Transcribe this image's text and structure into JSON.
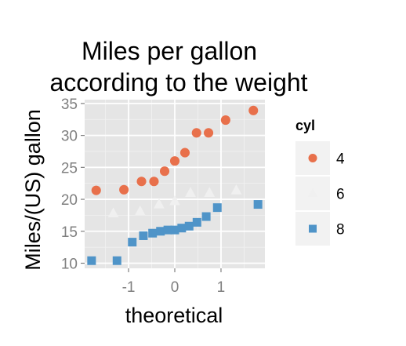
{
  "chart_data": {
    "type": "scatter",
    "title_lines": [
      "Miles per gallon",
      "according to the weight"
    ],
    "xlabel": "theoretical",
    "ylabel": "Miles/(US) gallon",
    "xlim": [
      -1.95,
      1.95
    ],
    "ylim": [
      9.2,
      35.6
    ],
    "x_ticks": [
      -1,
      0,
      1
    ],
    "x_tick_labels": [
      "-1",
      "0",
      "1"
    ],
    "y_ticks": [
      10,
      15,
      20,
      25,
      30,
      35
    ],
    "y_tick_labels": [
      "10",
      "15",
      "20",
      "25",
      "30",
      "35"
    ],
    "grid": true,
    "panel_background": "#e5e5e5",
    "legend": {
      "title": "cyl",
      "position": "right"
    },
    "series": [
      {
        "name": "4",
        "color": "#e8704b",
        "shape": "circle",
        "points": [
          {
            "x": -1.7,
            "y": 21.4
          },
          {
            "x": -1.1,
            "y": 21.5
          },
          {
            "x": -0.72,
            "y": 22.8
          },
          {
            "x": -0.45,
            "y": 22.8
          },
          {
            "x": -0.22,
            "y": 24.4
          },
          {
            "x": 0.0,
            "y": 26.0
          },
          {
            "x": 0.22,
            "y": 27.3
          },
          {
            "x": 0.47,
            "y": 30.4
          },
          {
            "x": 0.73,
            "y": 30.4
          },
          {
            "x": 1.1,
            "y": 32.4
          },
          {
            "x": 1.7,
            "y": 33.9
          }
        ]
      },
      {
        "name": "6",
        "color": "#f0f0f0",
        "shape": "triangle",
        "points": [
          {
            "x": -1.33,
            "y": 17.8
          },
          {
            "x": -0.75,
            "y": 18.1
          },
          {
            "x": -0.34,
            "y": 19.2
          },
          {
            "x": 0.0,
            "y": 19.7
          },
          {
            "x": 0.34,
            "y": 21.0
          },
          {
            "x": 0.75,
            "y": 21.0
          },
          {
            "x": 1.33,
            "y": 21.4
          }
        ]
      },
      {
        "name": "8",
        "color": "#4f94c8",
        "shape": "square",
        "points": [
          {
            "x": -1.8,
            "y": 10.4
          },
          {
            "x": -1.25,
            "y": 10.4
          },
          {
            "x": -0.92,
            "y": 13.3
          },
          {
            "x": -0.68,
            "y": 14.3
          },
          {
            "x": -0.48,
            "y": 14.7
          },
          {
            "x": -0.31,
            "y": 15.0
          },
          {
            "x": -0.15,
            "y": 15.2
          },
          {
            "x": 0.0,
            "y": 15.2
          },
          {
            "x": 0.15,
            "y": 15.5
          },
          {
            "x": 0.31,
            "y": 15.8
          },
          {
            "x": 0.48,
            "y": 16.4
          },
          {
            "x": 0.68,
            "y": 17.3
          },
          {
            "x": 0.92,
            "y": 18.7
          },
          {
            "x": 1.8,
            "y": 19.2
          }
        ]
      }
    ]
  }
}
